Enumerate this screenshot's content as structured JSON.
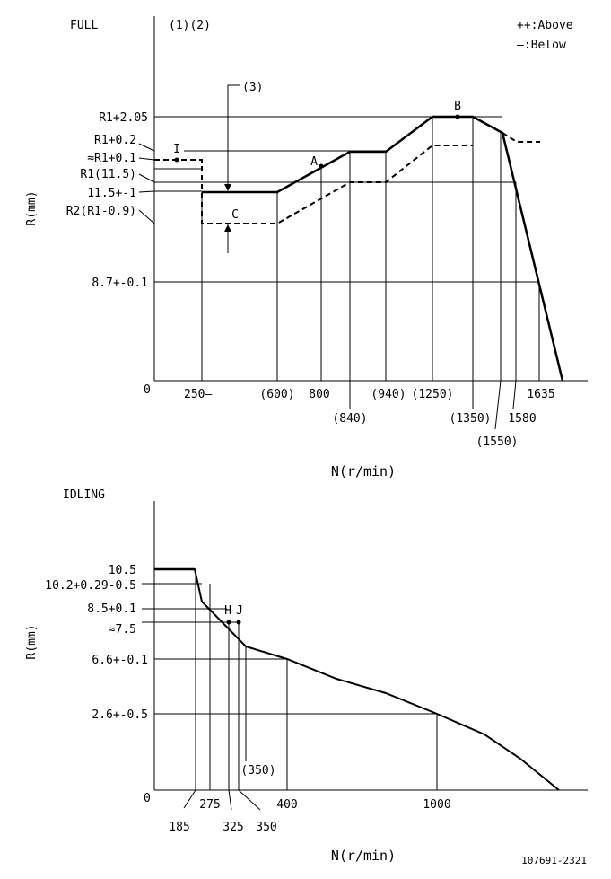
{
  "full": {
    "title": "FULL",
    "marks": "(1)(2)",
    "legend": [
      "++:Above",
      "—:Below"
    ],
    "ylabel": "R(mm)",
    "xlabel": "N(r/min)",
    "zero": "0",
    "note3": "(3)",
    "y_labels": [
      "R1+2.05",
      "R1+0.2",
      "≈R1+0.1",
      "R1(11.5)",
      "11.5+-1",
      "R2(R1-0.9)",
      "8.7+-0.1"
    ],
    "x_labels": [
      "250—",
      "(600)",
      "800",
      "(840)",
      "(940)",
      "(1250)",
      "(1350)",
      "(1550)",
      "1580",
      "1635"
    ],
    "points": {
      "A": "A",
      "B": "B",
      "C": "C",
      "I": "I"
    }
  },
  "idling": {
    "title": "IDLING",
    "ylabel": "R(mm)",
    "xlabel": "N(r/min)",
    "zero": "0",
    "y_labels": [
      "10.5",
      "10.2+0.29-0.5",
      "8.5+0.1",
      "≈7.5",
      "6.6+-0.1",
      "2.6+-0.5"
    ],
    "x_labels": [
      "185",
      "275",
      "325",
      "350",
      "400",
      "1000",
      "(350)"
    ],
    "points": {
      "H": "H",
      "J": "J"
    }
  },
  "doc_number": "107691-2321"
}
